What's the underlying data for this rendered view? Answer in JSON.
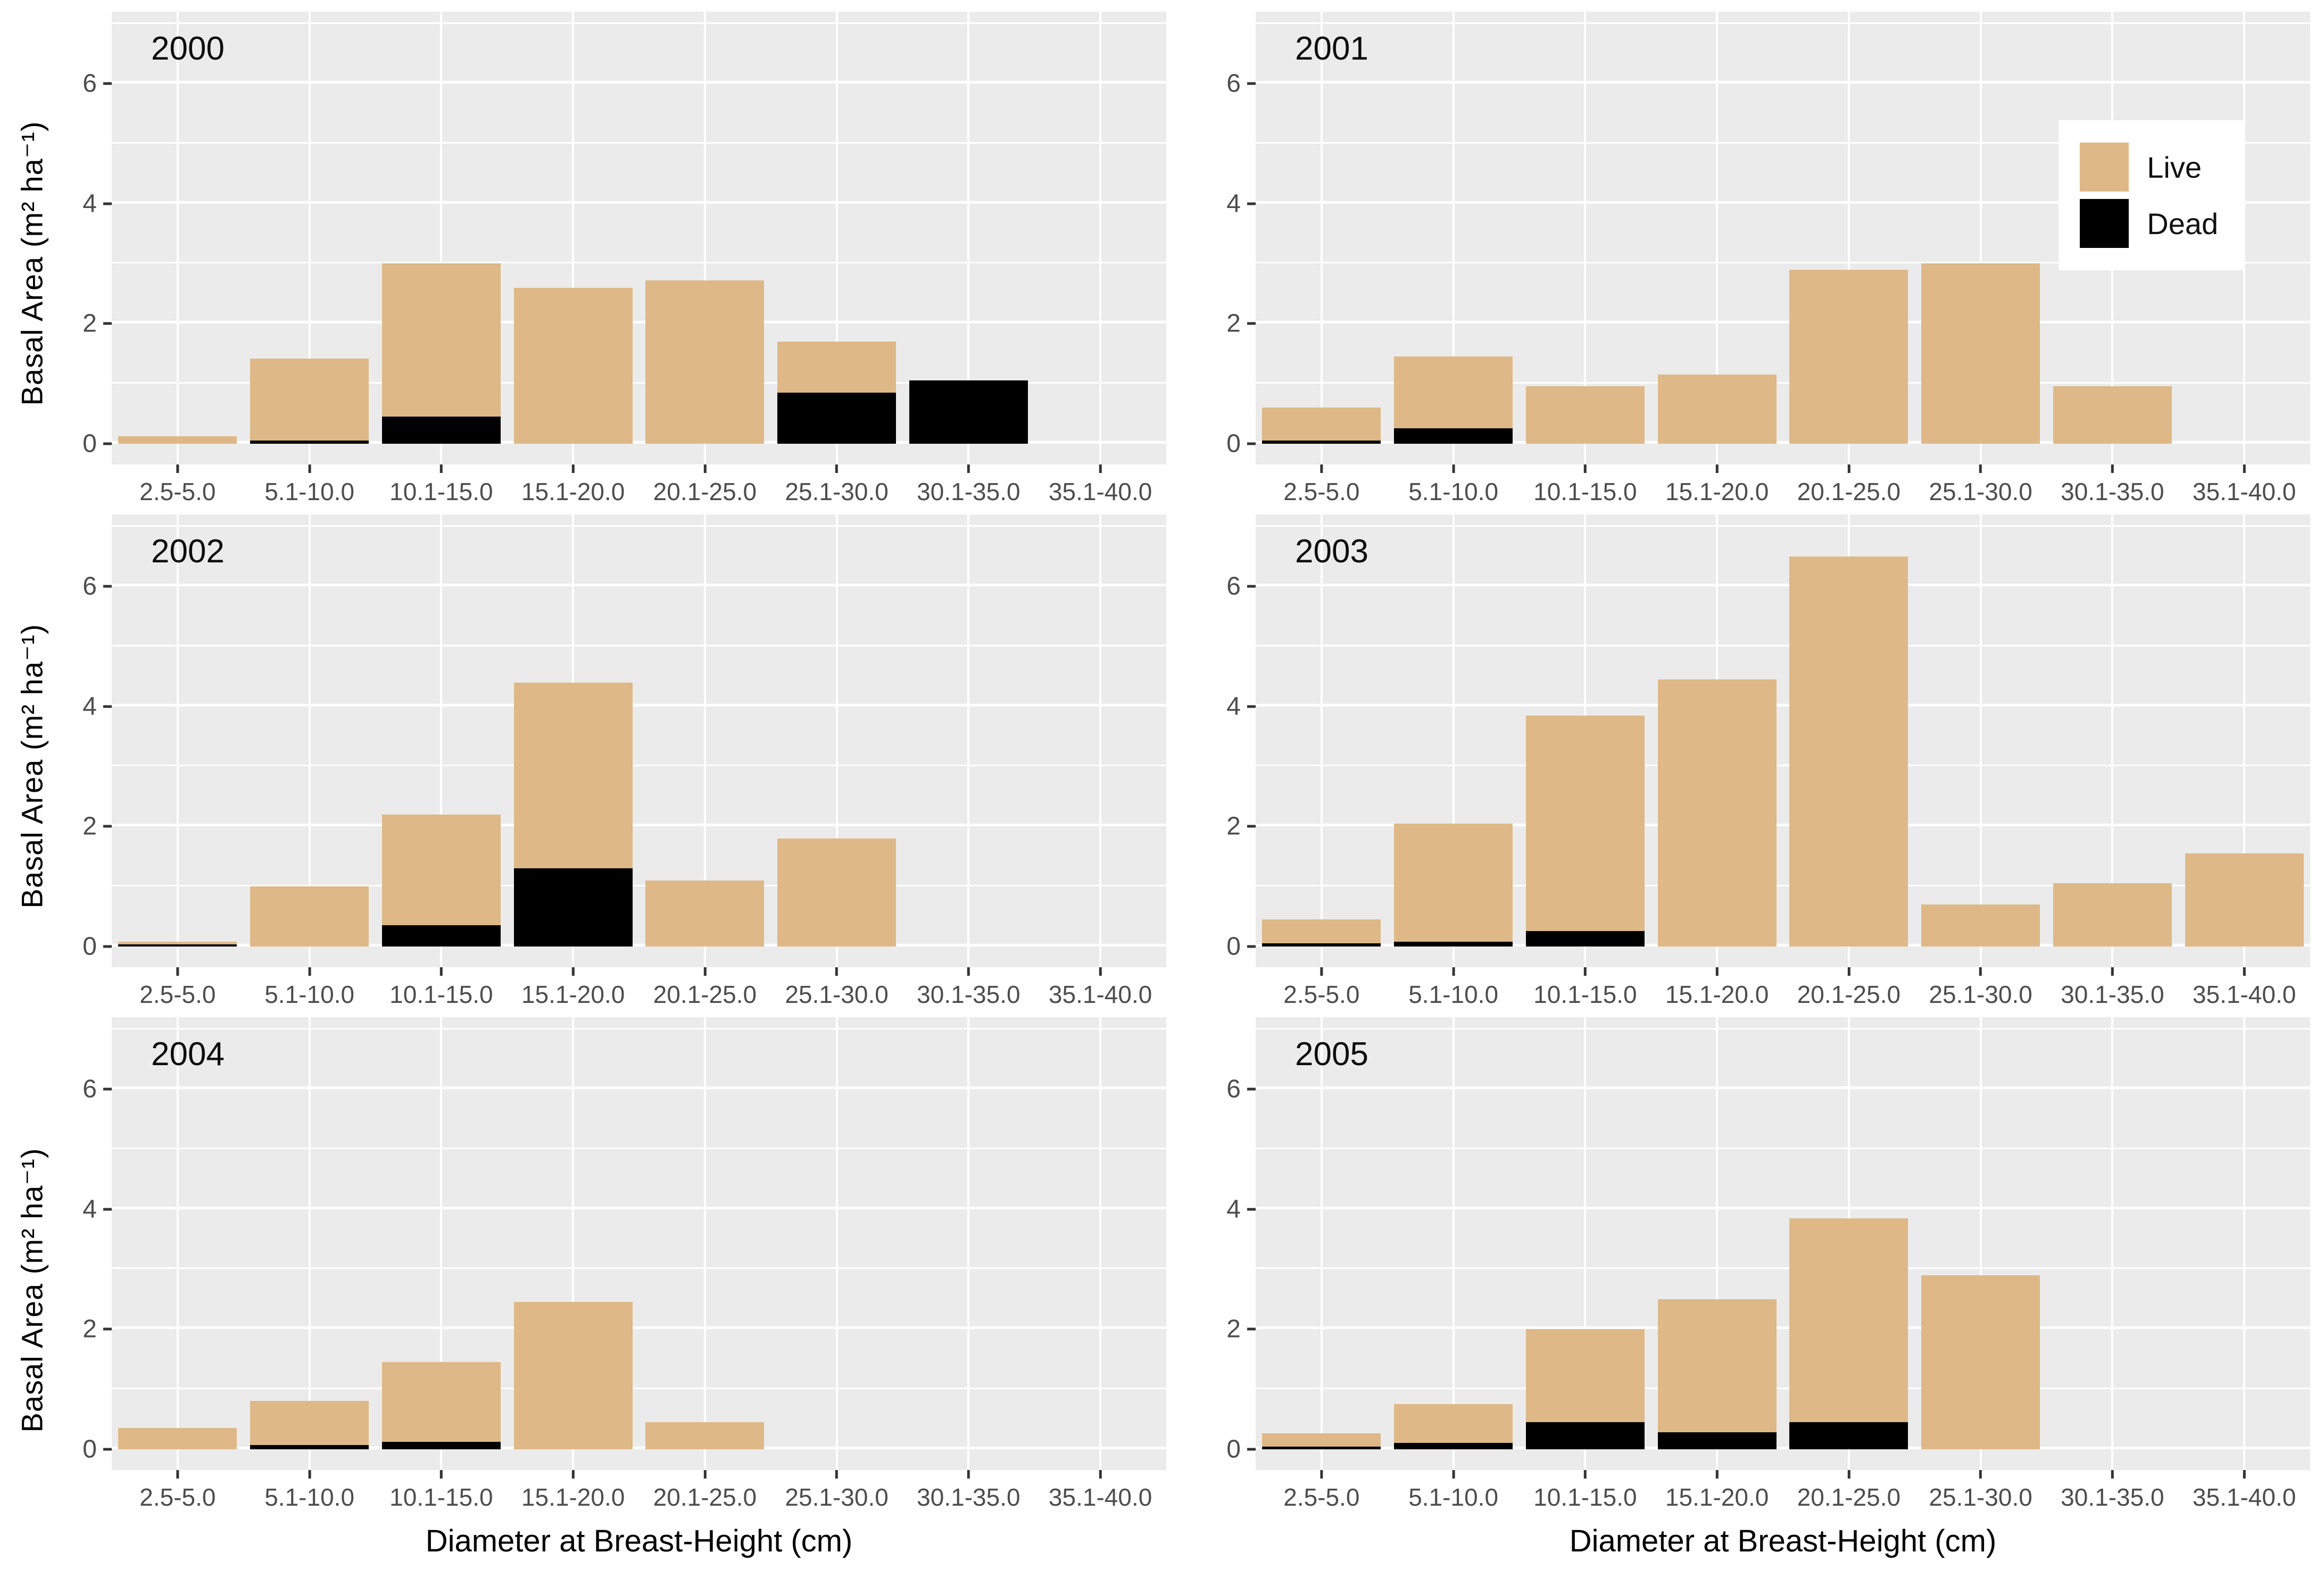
{
  "chart_data": {
    "type": "bar",
    "stacked": true,
    "facet_layout": "3 rows x 2 columns by year",
    "xlabel": "Diameter at Breast-Height (cm)",
    "ylabel": "Basal Area (m² ha⁻¹)",
    "categories": [
      "2.5-5.0",
      "5.1-10.0",
      "10.1-15.0",
      "15.1-20.0",
      "20.1-25.0",
      "25.1-30.0",
      "30.1-35.0",
      "35.1-40.0"
    ],
    "y_ticks": [
      0,
      2,
      4,
      6
    ],
    "y_minor_gridlines": [
      1,
      3,
      5,
      7
    ],
    "ylim": [
      -0.35,
      7.2
    ],
    "grid": true,
    "legend": {
      "position": "inside top-right of 2001 panel",
      "entries": [
        {
          "label": "Live",
          "color": "#DEB887"
        },
        {
          "label": "Dead",
          "color": "#000000"
        }
      ]
    },
    "series_note": "stacked basal area per diameter class; dead stacked below live",
    "facets": [
      {
        "year": "2000",
        "live": [
          0.12,
          1.37,
          2.55,
          2.6,
          2.72,
          0.85,
          0.0,
          0
        ],
        "dead": [
          0.0,
          0.05,
          0.45,
          0.0,
          0.0,
          0.85,
          1.05,
          0
        ]
      },
      {
        "year": "2001",
        "live": [
          0.55,
          1.2,
          0.95,
          1.15,
          2.9,
          3.0,
          0.95,
          0
        ],
        "dead": [
          0.05,
          0.25,
          0.0,
          0.0,
          0.0,
          0.0,
          0.0,
          0
        ]
      },
      {
        "year": "2002",
        "live": [
          0.05,
          1.0,
          1.85,
          3.1,
          1.1,
          1.8,
          0.0,
          0
        ],
        "dead": [
          0.03,
          0.0,
          0.35,
          1.3,
          0.0,
          0.0,
          0.0,
          0
        ]
      },
      {
        "year": "2003",
        "live": [
          0.4,
          1.97,
          3.6,
          4.45,
          6.5,
          0.7,
          1.05,
          1.55
        ],
        "dead": [
          0.05,
          0.08,
          0.25,
          0.0,
          0.0,
          0.0,
          0.0,
          0.0
        ]
      },
      {
        "year": "2004",
        "live": [
          0.35,
          0.73,
          1.33,
          2.45,
          0.45,
          0.0,
          0.0,
          0
        ],
        "dead": [
          0.0,
          0.07,
          0.12,
          0.0,
          0.0,
          0.0,
          0.0,
          0
        ]
      },
      {
        "year": "2005",
        "live": [
          0.22,
          0.65,
          1.55,
          2.22,
          3.4,
          2.9,
          0.0,
          0
        ],
        "dead": [
          0.04,
          0.1,
          0.45,
          0.28,
          0.45,
          0.0,
          0.0,
          0
        ]
      }
    ],
    "colors": {
      "live": "#DEB887",
      "dead": "#000000",
      "panel_background": "#EBEBEB",
      "gridline": "#FFFFFF",
      "tick_text": "#4D4D4D",
      "axis_text": "#000000"
    }
  }
}
